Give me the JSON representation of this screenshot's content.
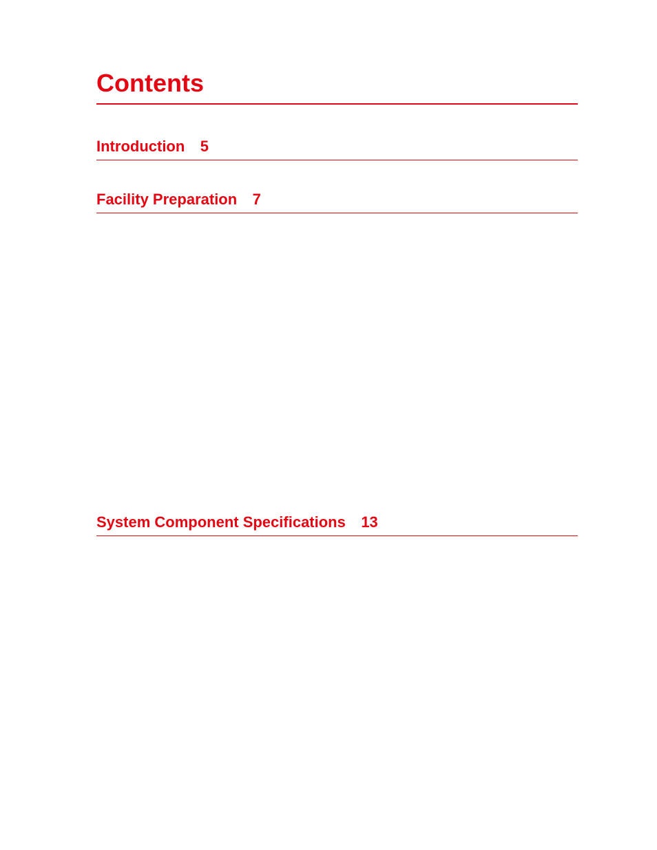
{
  "page": {
    "title": "Contents",
    "accent_color": "#e30613",
    "background_color": "#ffffff",
    "title_fontsize": 36,
    "entry_fontsize": 22
  },
  "entries": [
    {
      "title": "Introduction",
      "page": "5"
    },
    {
      "title": "Facility Preparation",
      "page": "7"
    },
    {
      "title": "System Component Specifications",
      "page": "13"
    }
  ]
}
